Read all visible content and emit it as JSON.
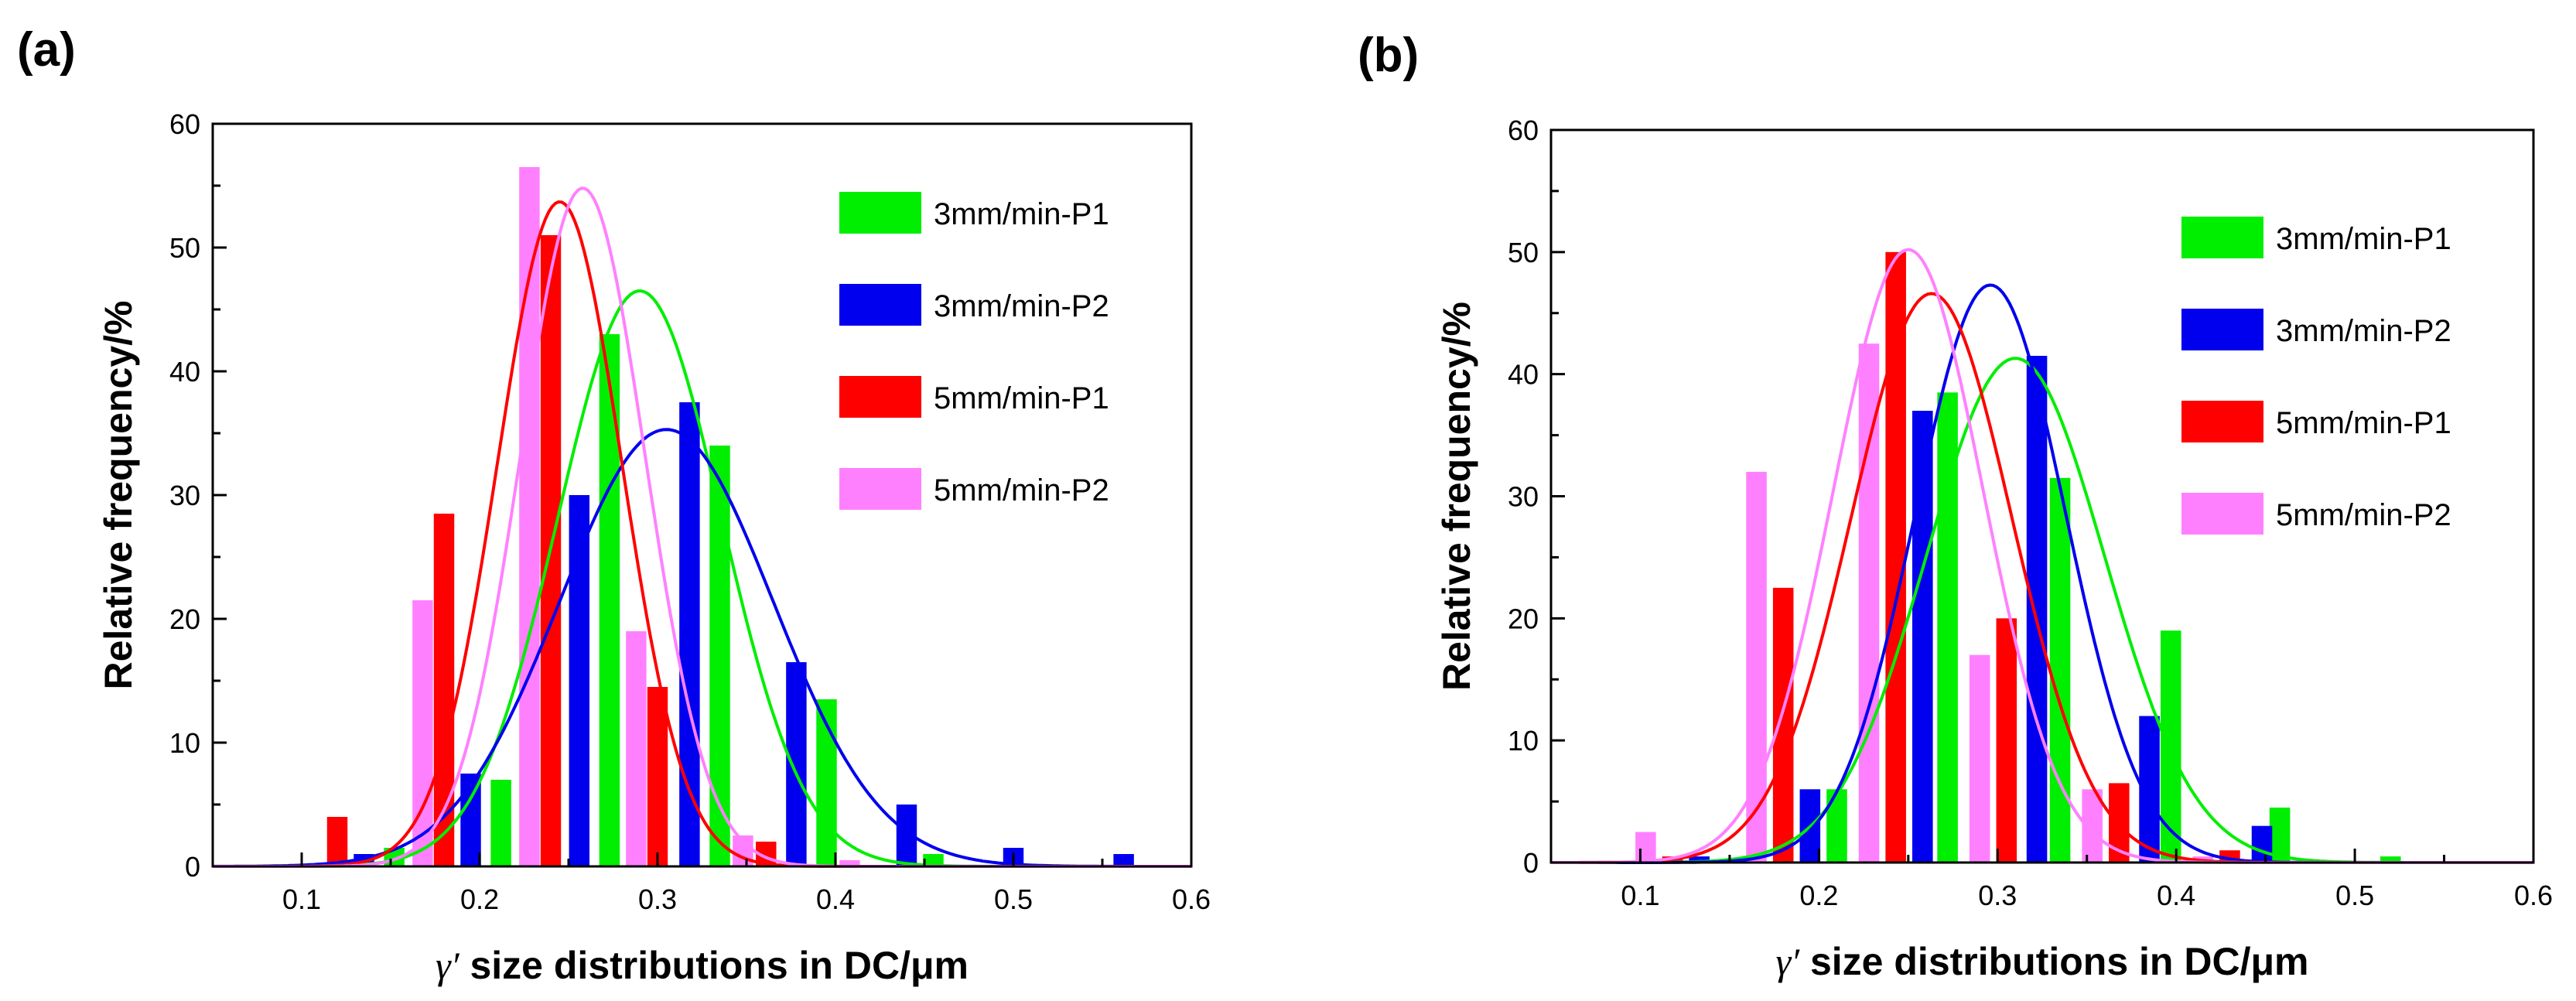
{
  "chart_data": [
    {
      "panel_label": "(a)",
      "type": "bar",
      "xlabel_prefix": "γ′",
      "xlabel_rest": " size distributions in DC/μm",
      "ylabel": "Relative frequency/%",
      "xlim": [
        0.05,
        0.6
      ],
      "ylim": [
        0,
        60
      ],
      "x_ticks": [
        0.1,
        0.2,
        0.3,
        0.4,
        0.5,
        0.6
      ],
      "x_tick_labels": [
        "0.1",
        "0.2",
        "0.3",
        "0.4",
        "0.5",
        "0.6"
      ],
      "y_ticks": [
        0,
        10,
        20,
        30,
        40,
        50,
        60
      ],
      "y_tick_labels": [
        "0",
        "10",
        "20",
        "30",
        "40",
        "50",
        "60"
      ],
      "bin_width": 0.0115,
      "legend_position": "top-right",
      "series": [
        {
          "name": "3mm/min-P1",
          "color": "#00ee00",
          "x": [
            0.152,
            0.212,
            0.273,
            0.335,
            0.395,
            0.455
          ],
          "values": [
            1.5,
            7,
            43,
            34,
            13.5,
            1
          ],
          "fit": {
            "mu": 0.29,
            "sigma": 0.046,
            "peak": 46.5
          }
        },
        {
          "name": "3mm/min-P2",
          "color": "#0000ee",
          "x": [
            0.135,
            0.195,
            0.256,
            0.318,
            0.378,
            0.44,
            0.5,
            0.562
          ],
          "values": [
            1,
            7.5,
            30,
            37.5,
            16.5,
            5,
            1.5,
            1
          ],
          "fit": {
            "mu": 0.305,
            "sigma": 0.06,
            "peak": 35.3
          }
        },
        {
          "name": "5mm/min-P1",
          "color": "#ff0000",
          "x": [
            0.12,
            0.18,
            0.24,
            0.3,
            0.361
          ],
          "values": [
            4,
            28.5,
            51,
            14.5,
            2
          ],
          "fit": {
            "mu": 0.245,
            "sigma": 0.035,
            "peak": 53.7
          }
        },
        {
          "name": "5mm/min-P2",
          "color": "#ff80ff",
          "x": [
            0.168,
            0.228,
            0.288,
            0.348,
            0.408
          ],
          "values": [
            21.5,
            56.5,
            19,
            2.5,
            0.5
          ],
          "fit": {
            "mu": 0.258,
            "sigma": 0.035,
            "peak": 54.8
          }
        }
      ]
    },
    {
      "panel_label": "(b)",
      "type": "bar",
      "xlabel_prefix": "γ′",
      "xlabel_rest": " size distributions in DC/μm",
      "ylabel": "Relative frequency/%",
      "xlim": [
        0.05,
        0.6
      ],
      "ylim": [
        0,
        60
      ],
      "x_ticks": [
        0.1,
        0.2,
        0.3,
        0.4,
        0.5,
        0.6
      ],
      "x_tick_labels": [
        "0.1",
        "0.2",
        "0.3",
        "0.4",
        "0.5",
        "0.6"
      ],
      "y_ticks": [
        0,
        10,
        20,
        30,
        40,
        50,
        60
      ],
      "y_tick_labels": [
        "0",
        "10",
        "20",
        "30",
        "40",
        "50",
        "60"
      ],
      "bin_width": 0.0115,
      "legend_position": "top-right",
      "series": [
        {
          "name": "3mm/min-P1",
          "color": "#00ee00",
          "x": [
            0.21,
            0.272,
            0.335,
            0.397,
            0.458,
            0.52
          ],
          "values": [
            6,
            38.5,
            31.5,
            19,
            4.5,
            0.5
          ],
          "fit": {
            "mu": 0.31,
            "sigma": 0.05,
            "peak": 41.3
          }
        },
        {
          "name": "3mm/min-P2",
          "color": "#0000ee",
          "x": [
            0.133,
            0.195,
            0.258,
            0.322,
            0.385,
            0.448
          ],
          "values": [
            0.5,
            6,
            37,
            41.5,
            12,
            3
          ],
          "fit": {
            "mu": 0.296,
            "sigma": 0.042,
            "peak": 47.3
          }
        },
        {
          "name": "5mm/min-P1",
          "color": "#ff0000",
          "x": [
            0.118,
            0.18,
            0.243,
            0.305,
            0.368,
            0.43
          ],
          "values": [
            0.5,
            22.5,
            50,
            20,
            6.5,
            1
          ],
          "fit": {
            "mu": 0.263,
            "sigma": 0.045,
            "peak": 46.6
          }
        },
        {
          "name": "5mm/min-P2",
          "color": "#ff80ff",
          "x": [
            0.103,
            0.165,
            0.228,
            0.29,
            0.353,
            0.415
          ],
          "values": [
            2.5,
            32,
            42.5,
            17,
            6,
            0.5
          ],
          "fit": {
            "mu": 0.25,
            "sigma": 0.042,
            "peak": 50.2
          }
        }
      ]
    }
  ]
}
